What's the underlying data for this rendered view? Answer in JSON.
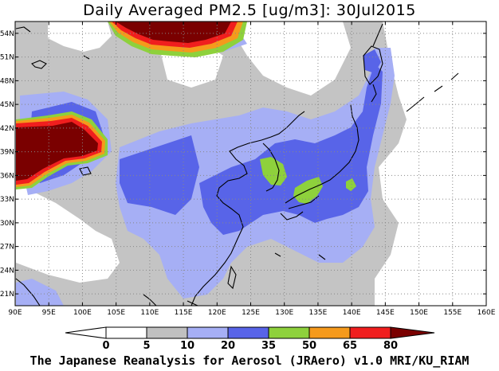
{
  "title": "Daily Averaged PM2.5 [ug/m3]: 30Jul2015",
  "credit": "The Japanese Reanalysis for Aerosol (JRAero) v1.0 MRI/KU_RIAM",
  "map": {
    "lon_range": [
      90,
      160
    ],
    "lat_range": [
      19.5,
      55.5
    ],
    "lon_ticks": [
      "90E",
      "95E",
      "100E",
      "105E",
      "110E",
      "115E",
      "120E",
      "125E",
      "130E",
      "135E",
      "140E",
      "145E",
      "150E",
      "155E",
      "160E"
    ],
    "lat_ticks": [
      "21N",
      "24N",
      "27N",
      "30N",
      "33N",
      "36N",
      "39N",
      "42N",
      "45N",
      "48N",
      "51N",
      "54N"
    ],
    "grid": "dotted"
  },
  "colorbar": {
    "labels": [
      "0",
      "5",
      "10",
      "20",
      "35",
      "50",
      "65",
      "80"
    ],
    "colors": [
      "#ffffff",
      "#c0c0c0",
      "#a6aff5",
      "#5864e8",
      "#8ed13c",
      "#f59a1c",
      "#f01e1e",
      "#7a0000"
    ]
  }
}
